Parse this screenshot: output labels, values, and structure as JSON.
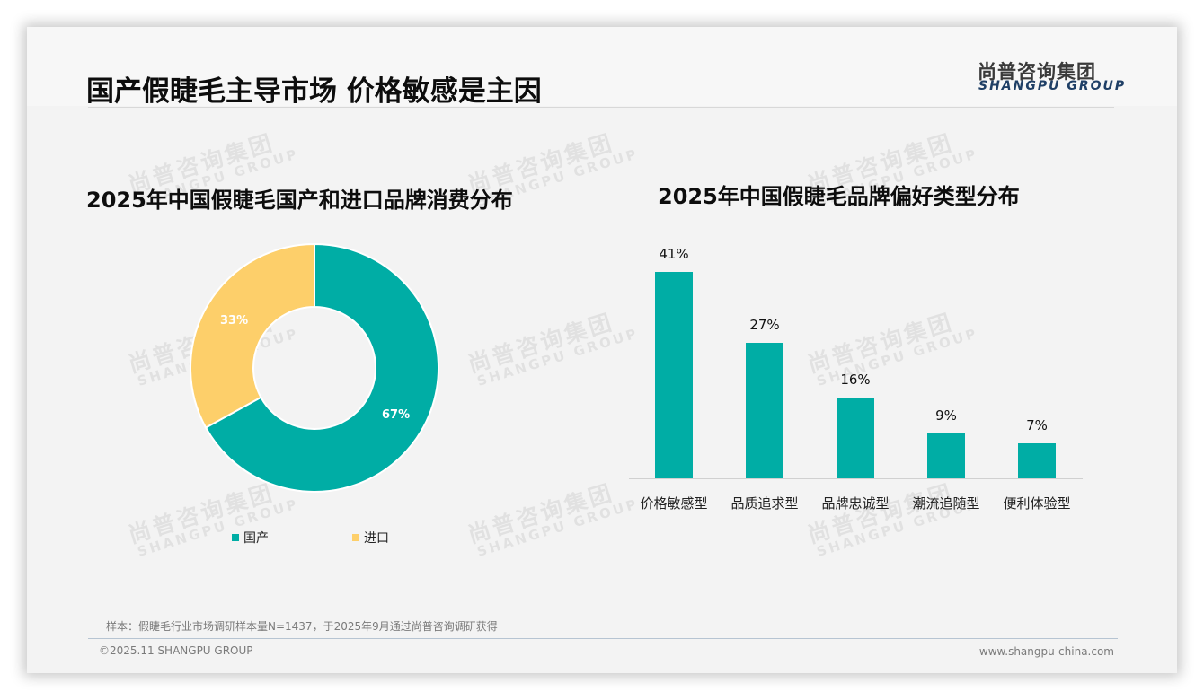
{
  "header": {
    "title": "国产假睫毛主导市场 价格敏感是主因",
    "logo_cn": "尚普咨询集团",
    "logo_en": "SHANGPU GROUP"
  },
  "watermark": {
    "cn": "尚普咨询集团",
    "en": "SHANGPU GROUP"
  },
  "colors": {
    "teal": "#00ada5",
    "yellow": "#fdcf6a",
    "logo_blue": "#1f3f66"
  },
  "left_chart": {
    "title": "2025年中国假睫毛国产和进口品牌消费分布",
    "slices": [
      {
        "label": "国产",
        "value_label": "67%"
      },
      {
        "label": "进口",
        "value_label": "33%"
      }
    ]
  },
  "right_chart": {
    "title": "2025年中国假睫毛品牌偏好类型分布",
    "bars": [
      {
        "category": "价格敏感型",
        "value_label": "41%"
      },
      {
        "category": "品质追求型",
        "value_label": "27%"
      },
      {
        "category": "品牌忠诚型",
        "value_label": "16%"
      },
      {
        "category": "潮流追随型",
        "value_label": "9%"
      },
      {
        "category": "便利体验型",
        "value_label": "7%"
      }
    ]
  },
  "footer": {
    "note": "样本：假睫毛行业市场调研样本量N=1437，于2025年9月通过尚普咨询调研获得",
    "copyright": "©2025.11 SHANGPU GROUP",
    "website": "www.shangpu-china.com"
  },
  "chart_data": [
    {
      "type": "pie",
      "title": "2025年中国假睫毛国产和进口品牌消费分布",
      "donut": true,
      "categories": [
        "国产",
        "进口"
      ],
      "values": [
        67,
        33
      ],
      "unit": "%",
      "colors": [
        "#00ada5",
        "#fdcf6a"
      ],
      "legend_position": "bottom"
    },
    {
      "type": "bar",
      "title": "2025年中国假睫毛品牌偏好类型分布",
      "categories": [
        "价格敏感型",
        "品质追求型",
        "品牌忠诚型",
        "潮流追随型",
        "便利体验型"
      ],
      "values": [
        41,
        27,
        16,
        9,
        7
      ],
      "unit": "%",
      "xlabel": "",
      "ylabel": "",
      "ylim": [
        0,
        45
      ],
      "grid": false,
      "color": "#00ada5",
      "data_labels": true
    }
  ]
}
